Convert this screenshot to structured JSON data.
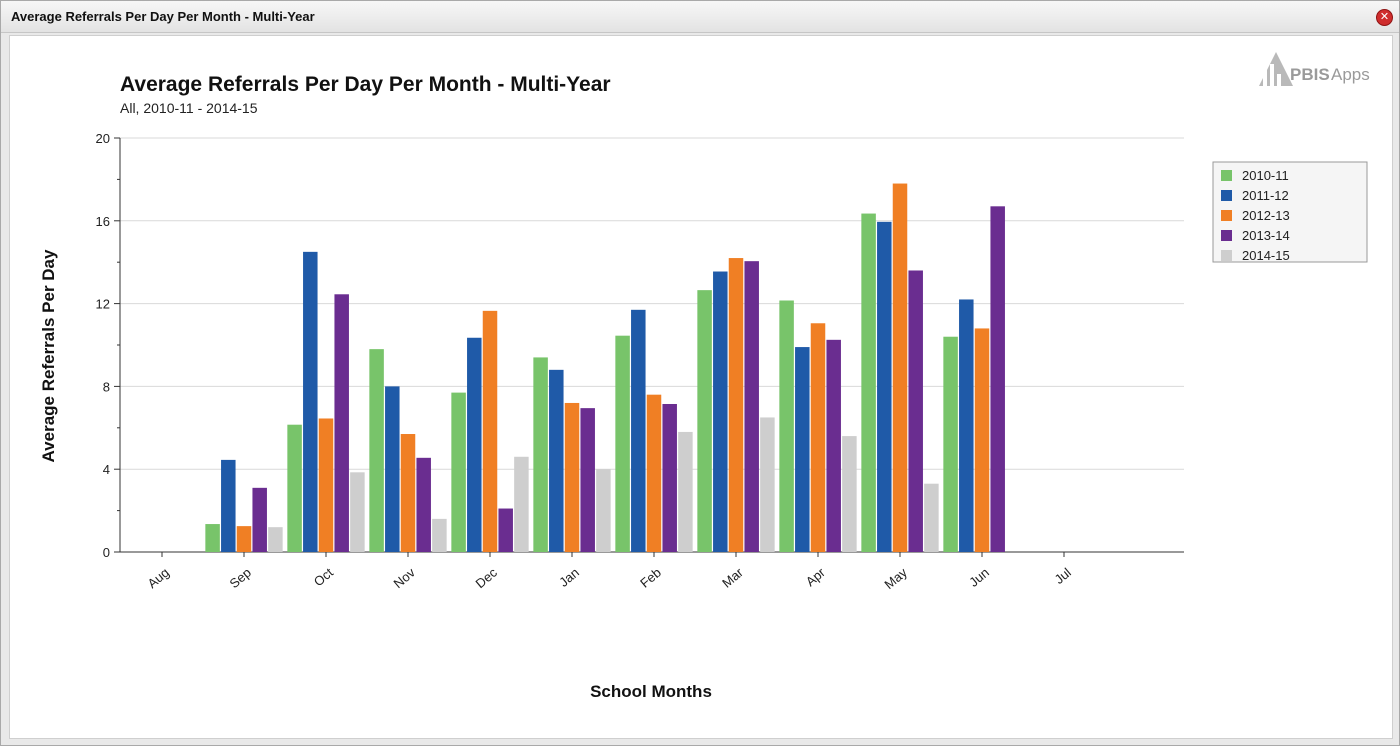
{
  "window": {
    "title": "Average Referrals Per Day Per Month - Multi-Year",
    "close_icon": "close-icon"
  },
  "logo": {
    "brand_bold": "PBIS",
    "brand_rest": "Apps",
    "icon": "building-chart-icon"
  },
  "colors": {
    "2010-11": "#78c46a",
    "2011-12": "#1f5aa8",
    "2012-13": "#f07f24",
    "2013-14": "#6a2d90",
    "2014-15": "#cecece"
  },
  "chart_data": {
    "type": "bar",
    "title": "Average Referrals Per Day Per Month - Multi-Year",
    "subtitle": "All, 2010-11 - 2014-15",
    "xlabel": "School Months",
    "ylabel": "Average Referrals Per Day",
    "ylim": [
      0,
      20
    ],
    "yticks": [
      0,
      4,
      8,
      12,
      16,
      20
    ],
    "grid": true,
    "legend_position": "right",
    "categories": [
      "Aug",
      "Sep",
      "Oct",
      "Nov",
      "Dec",
      "Jan",
      "Feb",
      "Mar",
      "Apr",
      "May",
      "Jun",
      "Jul"
    ],
    "series": [
      {
        "name": "2010-11",
        "values": [
          0,
          1.35,
          6.15,
          9.8,
          7.7,
          9.4,
          10.45,
          12.65,
          12.15,
          16.35,
          10.4,
          0
        ]
      },
      {
        "name": "2011-12",
        "values": [
          0,
          4.45,
          14.5,
          8.0,
          10.35,
          8.8,
          11.7,
          13.55,
          9.9,
          15.95,
          12.2,
          0
        ]
      },
      {
        "name": "2012-13",
        "values": [
          0,
          1.25,
          6.45,
          5.7,
          11.65,
          7.2,
          7.6,
          14.2,
          11.05,
          17.8,
          10.8,
          0
        ]
      },
      {
        "name": "2013-14",
        "values": [
          0,
          3.1,
          12.45,
          4.55,
          2.1,
          6.95,
          7.15,
          14.05,
          10.25,
          13.6,
          16.7,
          0
        ]
      },
      {
        "name": "2014-15",
        "values": [
          0,
          1.2,
          3.85,
          1.6,
          4.6,
          4.0,
          5.8,
          6.5,
          5.6,
          3.3,
          0,
          0
        ]
      }
    ]
  }
}
